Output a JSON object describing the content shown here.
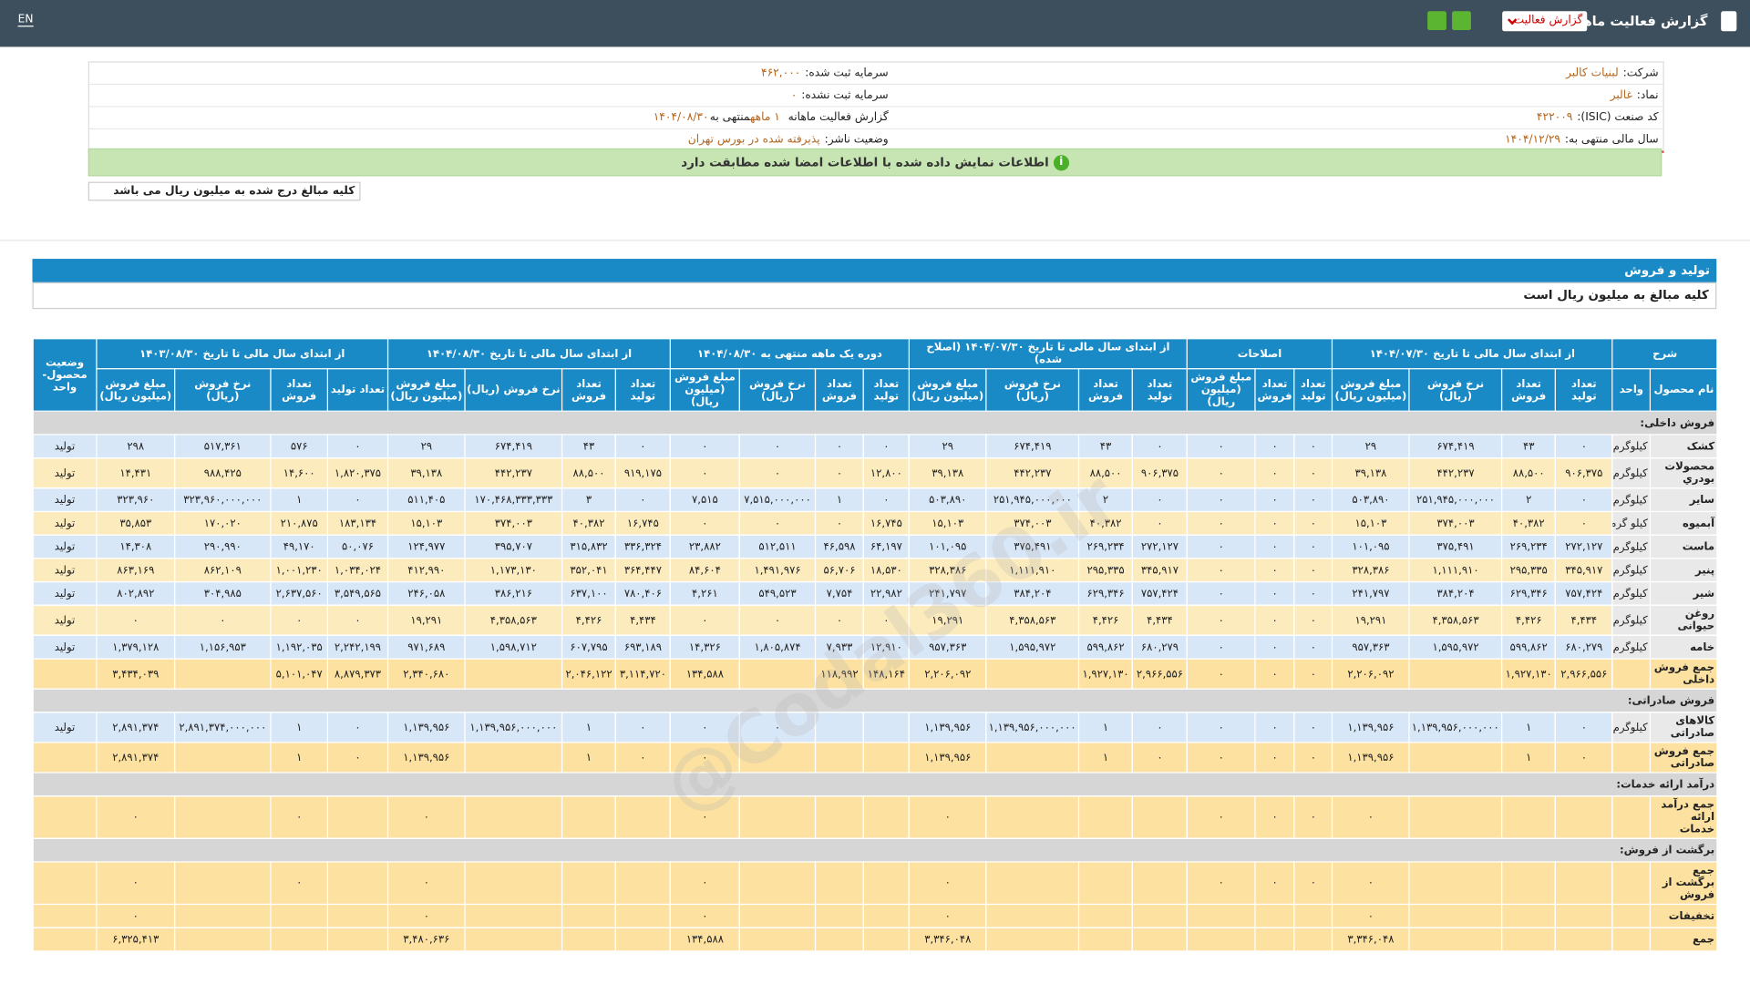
{
  "topbar": {
    "title": "گزارش فعالیت ماهانه",
    "dropdown": "گزارش فعالیت",
    "language": "EN"
  },
  "info": {
    "company_label": "شرکت:",
    "company": "لبنیات کالبر",
    "symbol_label": "نماد:",
    "symbol": "غالبر",
    "isic_label": "کد صنعت (ISIC):",
    "isic": "۴۲۲۰۰۹",
    "fiscal_label": "سال مالی منتهی به:",
    "fiscal": "۱۴۰۴/۱۲/۲۹",
    "capital_label": "سرمایه ثبت شده:",
    "capital": "۴۶۲,۰۰۰",
    "unreg_label": "سرمایه ثبت نشده:",
    "unreg": "۰",
    "report_label": "گزارش فعالیت ماهانه",
    "report_period": "۱ ماهه",
    "report_end_label": "منتهی به",
    "report_end": "۱۴۰۴/۰۸/۳۰",
    "status_label": "وضعیت ناشر:",
    "status": "پذیرفته شده در بورس تهران"
  },
  "notice": "اطلاعات نمایش داده شده با اطلاعات امضا شده مطابقت دارد",
  "amount_note": "کلیه مبالغ درج شده به میلیون ریال می باشد",
  "section": {
    "title": "تولید و فروش",
    "subtitle": "کلیه مبالغ به میلیون ریال است"
  },
  "watermark": "@Codal360.ir",
  "table": {
    "columns": [
      {
        "label": "شرح",
        "sub": [
          "نام محصول",
          "واحد"
        ]
      },
      {
        "label": "از ابتدای سال مالی تا تاریخ ۱۴۰۴/۰۷/۳۰",
        "sub": [
          "تعداد تولید",
          "تعداد فروش",
          "نرخ فروش (ریال)",
          "مبلغ فروش (میلیون ریال)"
        ]
      },
      {
        "label": "اصلاحات",
        "sub": [
          "تعداد تولید",
          "تعداد فروش",
          "مبلغ فروش (میلیون ریال)"
        ]
      },
      {
        "label": "از ابتدای سال مالی تا تاریخ ۱۴۰۴/۰۷/۳۰ (اصلاح شده)",
        "sub": [
          "تعداد تولید",
          "تعداد فروش",
          "نرخ فروش (ریال)",
          "مبلغ فروش (میلیون ریال)"
        ]
      },
      {
        "label": "دوره یک ماهه منتهی به ۱۴۰۴/۰۸/۳۰",
        "sub": [
          "تعداد تولید",
          "تعداد فروش",
          "نرخ فروش (ریال)",
          "مبلغ فروش (میلیون ریال)"
        ]
      },
      {
        "label": "از ابتدای سال مالی تا تاریخ ۱۴۰۴/۰۸/۳۰",
        "sub": [
          "تعداد تولید",
          "تعداد فروش",
          "نرخ فروش (ریال)",
          "مبلغ فروش (میلیون ریال)"
        ]
      },
      {
        "label": "از ابتدای سال مالی تا تاریخ ۱۴۰۳/۰۸/۳۰",
        "sub": [
          "تعداد تولید",
          "تعداد فروش",
          "نرخ فروش (ریال)",
          "مبلغ فروش (میلیون ریال)"
        ]
      },
      {
        "label": "وضعیت محصول- واحد"
      }
    ],
    "rows": [
      {
        "section": "فروش داخلی:"
      },
      {
        "cells": [
          "کشک",
          "کیلوگرم",
          "۰",
          "۴۳",
          "۶۷۴,۴۱۹",
          "۲۹",
          "۰",
          "۰",
          "۰",
          "۰",
          "۴۳",
          "۶۷۴,۴۱۹",
          "۲۹",
          "۰",
          "۰",
          "۰",
          "۰",
          "۰",
          "۴۳",
          "۶۷۴,۴۱۹",
          "۲۹",
          "۰",
          "۵۷۶",
          "۵۱۷,۳۶۱",
          "۲۹۸",
          "تولید"
        ]
      },
      {
        "cells": [
          "محصولات بودري",
          "کیلوگرم",
          "۹۰۶,۳۷۵",
          "۸۸,۵۰۰",
          "۴۴۲,۲۳۷",
          "۳۹,۱۳۸",
          "۰",
          "۰",
          "۰",
          "۹۰۶,۳۷۵",
          "۸۸,۵۰۰",
          "۴۴۲,۲۳۷",
          "۳۹,۱۳۸",
          "۱۲,۸۰۰",
          "۰",
          "۰",
          "۰",
          "۹۱۹,۱۷۵",
          "۸۸,۵۰۰",
          "۴۴۲,۲۳۷",
          "۳۹,۱۳۸",
          "۱,۸۲۰,۳۷۵",
          "۱۴,۶۰۰",
          "۹۸۸,۴۲۵",
          "۱۴,۴۳۱",
          "تولید"
        ]
      },
      {
        "cells": [
          "سایر",
          "کیلوگرم",
          "۰",
          "۲",
          "۲۵۱,۹۴۵,۰۰۰,۰۰۰",
          "۵۰۳,۸۹۰",
          "۰",
          "۰",
          "۰",
          "۰",
          "۲",
          "۲۵۱,۹۴۵,۰۰۰,۰۰۰",
          "۵۰۳,۸۹۰",
          "۰",
          "۱",
          "۷,۵۱۵,۰۰۰,۰۰۰",
          "۷,۵۱۵",
          "۰",
          "۳",
          "۱۷۰,۴۶۸,۳۳۳,۳۳۳",
          "۵۱۱,۴۰۵",
          "۰",
          "۱",
          "۳۲۳,۹۶۰,۰۰۰,۰۰۰",
          "۳۲۳,۹۶۰",
          "تولید"
        ]
      },
      {
        "cells": [
          "آبمیوه",
          "کیلو گرم",
          "۰",
          "۴۰,۳۸۲",
          "۳۷۴,۰۰۳",
          "۱۵,۱۰۳",
          "۰",
          "۰",
          "۰",
          "۰",
          "۴۰,۳۸۲",
          "۳۷۴,۰۰۳",
          "۱۵,۱۰۳",
          "۱۶,۷۴۵",
          "۰",
          "۰",
          "۰",
          "۱۶,۷۴۵",
          "۴۰,۳۸۲",
          "۳۷۴,۰۰۳",
          "۱۵,۱۰۳",
          "۱۸۳,۱۳۴",
          "۲۱۰,۸۷۵",
          "۱۷۰,۰۲۰",
          "۳۵,۸۵۳",
          "تولید"
        ]
      },
      {
        "cells": [
          "ماست",
          "کیلوگرم",
          "۲۷۲,۱۲۷",
          "۲۶۹,۲۳۴",
          "۳۷۵,۴۹۱",
          "۱۰۱,۰۹۵",
          "۰",
          "۰",
          "۰",
          "۲۷۲,۱۲۷",
          "۲۶۹,۲۳۴",
          "۳۷۵,۴۹۱",
          "۱۰۱,۰۹۵",
          "۶۴,۱۹۷",
          "۴۶,۵۹۸",
          "۵۱۲,۵۱۱",
          "۲۳,۸۸۲",
          "۳۳۶,۳۲۴",
          "۳۱۵,۸۳۲",
          "۳۹۵,۷۰۷",
          "۱۲۴,۹۷۷",
          "۵۰,۰۷۶",
          "۴۹,۱۷۰",
          "۲۹۰,۹۹۰",
          "۱۴,۳۰۸",
          "تولید"
        ]
      },
      {
        "cells": [
          "پنیر",
          "کیلوگرم",
          "۳۴۵,۹۱۷",
          "۲۹۵,۳۳۵",
          "۱,۱۱۱,۹۱۰",
          "۳۲۸,۳۸۶",
          "۰",
          "۰",
          "۰",
          "۳۴۵,۹۱۷",
          "۲۹۵,۳۳۵",
          "۱,۱۱۱,۹۱۰",
          "۳۲۸,۳۸۶",
          "۱۸,۵۳۰",
          "۵۶,۷۰۶",
          "۱,۴۹۱,۹۷۶",
          "۸۴,۶۰۴",
          "۳۶۴,۴۴۷",
          "۳۵۲,۰۴۱",
          "۱,۱۷۳,۱۳۰",
          "۴۱۲,۹۹۰",
          "۱,۰۳۴,۰۲۴",
          "۱,۰۰۱,۲۳۰",
          "۸۶۲,۱۰۹",
          "۸۶۳,۱۶۹",
          "تولید"
        ]
      },
      {
        "cells": [
          "شیر",
          "کیلوگرم",
          "۷۵۷,۴۲۴",
          "۶۲۹,۳۴۶",
          "۳۸۴,۲۰۴",
          "۲۴۱,۷۹۷",
          "۰",
          "۰",
          "۰",
          "۷۵۷,۴۲۴",
          "۶۲۹,۳۴۶",
          "۳۸۴,۲۰۴",
          "۲۴۱,۷۹۷",
          "۲۲,۹۸۲",
          "۷,۷۵۴",
          "۵۴۹,۵۲۳",
          "۴,۲۶۱",
          "۷۸۰,۴۰۶",
          "۶۳۷,۱۰۰",
          "۳۸۶,۲۱۶",
          "۲۴۶,۰۵۸",
          "۳,۵۴۹,۵۶۵",
          "۲,۶۳۷,۵۶۰",
          "۳۰۴,۹۸۵",
          "۸۰۲,۸۹۲",
          "تولید"
        ]
      },
      {
        "cells": [
          "روغن حیوانی",
          "کیلوگرم",
          "۴,۴۳۴",
          "۴,۴۲۶",
          "۴,۳۵۸,۵۶۳",
          "۱۹,۲۹۱",
          "۰",
          "۰",
          "۰",
          "۴,۴۳۴",
          "۴,۴۲۶",
          "۴,۳۵۸,۵۶۳",
          "۱۹,۲۹۱",
          "۰",
          "۰",
          "۰",
          "۰",
          "۴,۴۳۴",
          "۴,۴۲۶",
          "۴,۳۵۸,۵۶۳",
          "۱۹,۲۹۱",
          "۰",
          "۰",
          "۰",
          "۰",
          "تولید"
        ]
      },
      {
        "cells": [
          "خامه",
          "کیلوگرم",
          "۶۸۰,۲۷۹",
          "۵۹۹,۸۶۲",
          "۱,۵۹۵,۹۷۲",
          "۹۵۷,۳۶۳",
          "۰",
          "۰",
          "۰",
          "۶۸۰,۲۷۹",
          "۵۹۹,۸۶۲",
          "۱,۵۹۵,۹۷۲",
          "۹۵۷,۳۶۳",
          "۱۲,۹۱۰",
          "۷,۹۳۳",
          "۱,۸۰۵,۸۷۴",
          "۱۴,۳۲۶",
          "۶۹۳,۱۸۹",
          "۶۰۷,۷۹۵",
          "۱,۵۹۸,۷۱۲",
          "۹۷۱,۶۸۹",
          "۲,۲۴۲,۱۹۹",
          "۱,۱۹۲,۰۳۵",
          "۱,۱۵۶,۹۵۳",
          "۱,۳۷۹,۱۲۸",
          "تولید"
        ]
      },
      {
        "cells": [
          "جمع فروش داخلی",
          null,
          "۲,۹۶۶,۵۵۶",
          "۱,۹۲۷,۱۳۰",
          null,
          "۲,۲۰۶,۰۹۲",
          "۰",
          "۰",
          "۰",
          "۲,۹۶۶,۵۵۶",
          "۱,۹۲۷,۱۳۰",
          null,
          "۲,۲۰۶,۰۹۲",
          "۱۴۸,۱۶۴",
          "۱۱۸,۹۹۲",
          null,
          "۱۳۴,۵۸۸",
          "۳,۱۱۴,۷۲۰",
          "۲,۰۴۶,۱۲۲",
          null,
          "۲,۳۴۰,۶۸۰",
          "۸,۸۷۹,۳۷۳",
          "۵,۱۰۱,۰۴۷",
          null,
          "۳,۴۳۴,۰۳۹",
          null
        ]
      },
      {
        "section": "فروش صادراتی:"
      },
      {
        "cells": [
          "کالاهای صادراتی",
          "کیلوگرم",
          "۰",
          "۱",
          "۱,۱۳۹,۹۵۶,۰۰۰,۰۰۰",
          "۱,۱۳۹,۹۵۶",
          "۰",
          "۰",
          "۰",
          "۰",
          "۱",
          "۱,۱۳۹,۹۵۶,۰۰۰,۰۰۰",
          "۱,۱۳۹,۹۵۶",
          null,
          null,
          "۰",
          "۰",
          "۰",
          "۱",
          "۱,۱۳۹,۹۵۶,۰۰۰,۰۰۰",
          "۱,۱۳۹,۹۵۶",
          "۰",
          "۱",
          "۲,۸۹۱,۳۷۴,۰۰۰,۰۰۰",
          "۲,۸۹۱,۳۷۴",
          "تولید"
        ]
      },
      {
        "cells": [
          "جمع فروش صادراتی",
          null,
          "۰",
          "۱",
          null,
          "۱,۱۳۹,۹۵۶",
          "۰",
          "۰",
          "۰",
          "۰",
          "۱",
          null,
          "۱,۱۳۹,۹۵۶",
          null,
          null,
          null,
          "۰",
          "۰",
          "۱",
          null,
          "۱,۱۳۹,۹۵۶",
          "۰",
          "۱",
          null,
          "۲,۸۹۱,۳۷۴",
          null
        ]
      },
      {
        "section": "درآمد ارائه خدمات:"
      },
      {
        "cells": [
          "جمع درآمد ارائه خدمات",
          null,
          null,
          null,
          null,
          "۰",
          "۰",
          "۰",
          "۰",
          null,
          null,
          null,
          "۰",
          null,
          null,
          null,
          "۰",
          null,
          null,
          null,
          "۰",
          null,
          "۰",
          null,
          "۰",
          null
        ]
      },
      {
        "section": "برگشت از فروش:"
      },
      {
        "cells": [
          "جمع برگشت از فروش",
          null,
          null,
          null,
          null,
          "۰",
          "۰",
          "۰",
          "۰",
          null,
          null,
          null,
          "۰",
          null,
          null,
          null,
          "۰",
          null,
          null,
          null,
          "۰",
          null,
          "۰",
          null,
          "۰",
          null
        ]
      },
      {
        "cells": [
          "تخفیفات",
          null,
          null,
          null,
          null,
          "۰",
          null,
          null,
          null,
          null,
          null,
          null,
          "۰",
          null,
          null,
          null,
          "۰",
          null,
          null,
          null,
          "۰",
          null,
          null,
          null,
          "۰",
          null
        ]
      },
      {
        "cells": [
          "جمع",
          null,
          null,
          null,
          null,
          "۳,۳۴۶,۰۴۸",
          null,
          null,
          null,
          null,
          null,
          null,
          "۳,۳۴۶,۰۴۸",
          null,
          null,
          null,
          "۱۳۴,۵۸۸",
          null,
          null,
          null,
          "۳,۴۸۰,۶۳۶",
          null,
          null,
          null,
          "۶,۳۲۵,۴۱۳",
          null
        ]
      }
    ]
  }
}
